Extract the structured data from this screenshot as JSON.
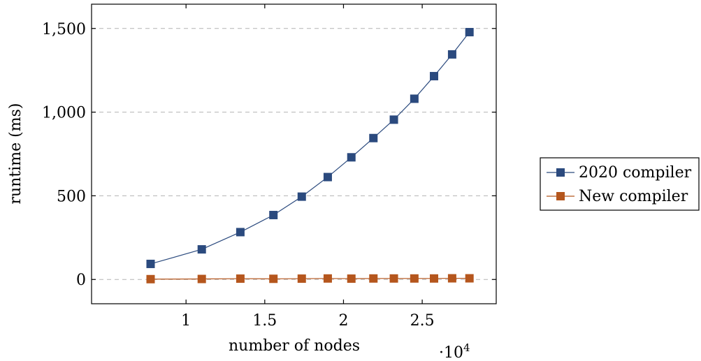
{
  "chart_data": {
    "type": "line",
    "title": "",
    "xlabel": "number of nodes",
    "ylabel": "runtime (ms)",
    "x_multiplier_label": "·10",
    "x_multiplier_exp": "4",
    "xlim": [
      0.4,
      2.97
    ],
    "ylim": [
      -145,
      1645
    ],
    "x_ticks": [
      1,
      1.5,
      2,
      2.5
    ],
    "x_tick_labels": [
      "1",
      "1.5",
      "2",
      "2.5"
    ],
    "y_ticks": [
      0,
      500,
      1000,
      1500
    ],
    "y_tick_labels": [
      "0",
      "500",
      "1,000",
      "1,500"
    ],
    "grid": "horizontal dashed",
    "legend_position": "right outside",
    "x": [
      0.775,
      1.1,
      1.345,
      1.555,
      1.735,
      1.9,
      2.05,
      2.19,
      2.32,
      2.45,
      2.575,
      2.69,
      2.8
    ],
    "series": [
      {
        "name": "2020 compiler",
        "color": "#2b4a7e",
        "marker": "square",
        "values": [
          93,
          180,
          283,
          385,
          495,
          612,
          730,
          845,
          955,
          1080,
          1215,
          1345,
          1478
        ]
      },
      {
        "name": "New compiler",
        "color": "#b5561d",
        "marker": "square",
        "values": [
          2,
          3,
          5,
          4,
          5,
          6,
          5,
          6,
          6,
          6,
          6,
          7,
          7
        ]
      }
    ]
  }
}
